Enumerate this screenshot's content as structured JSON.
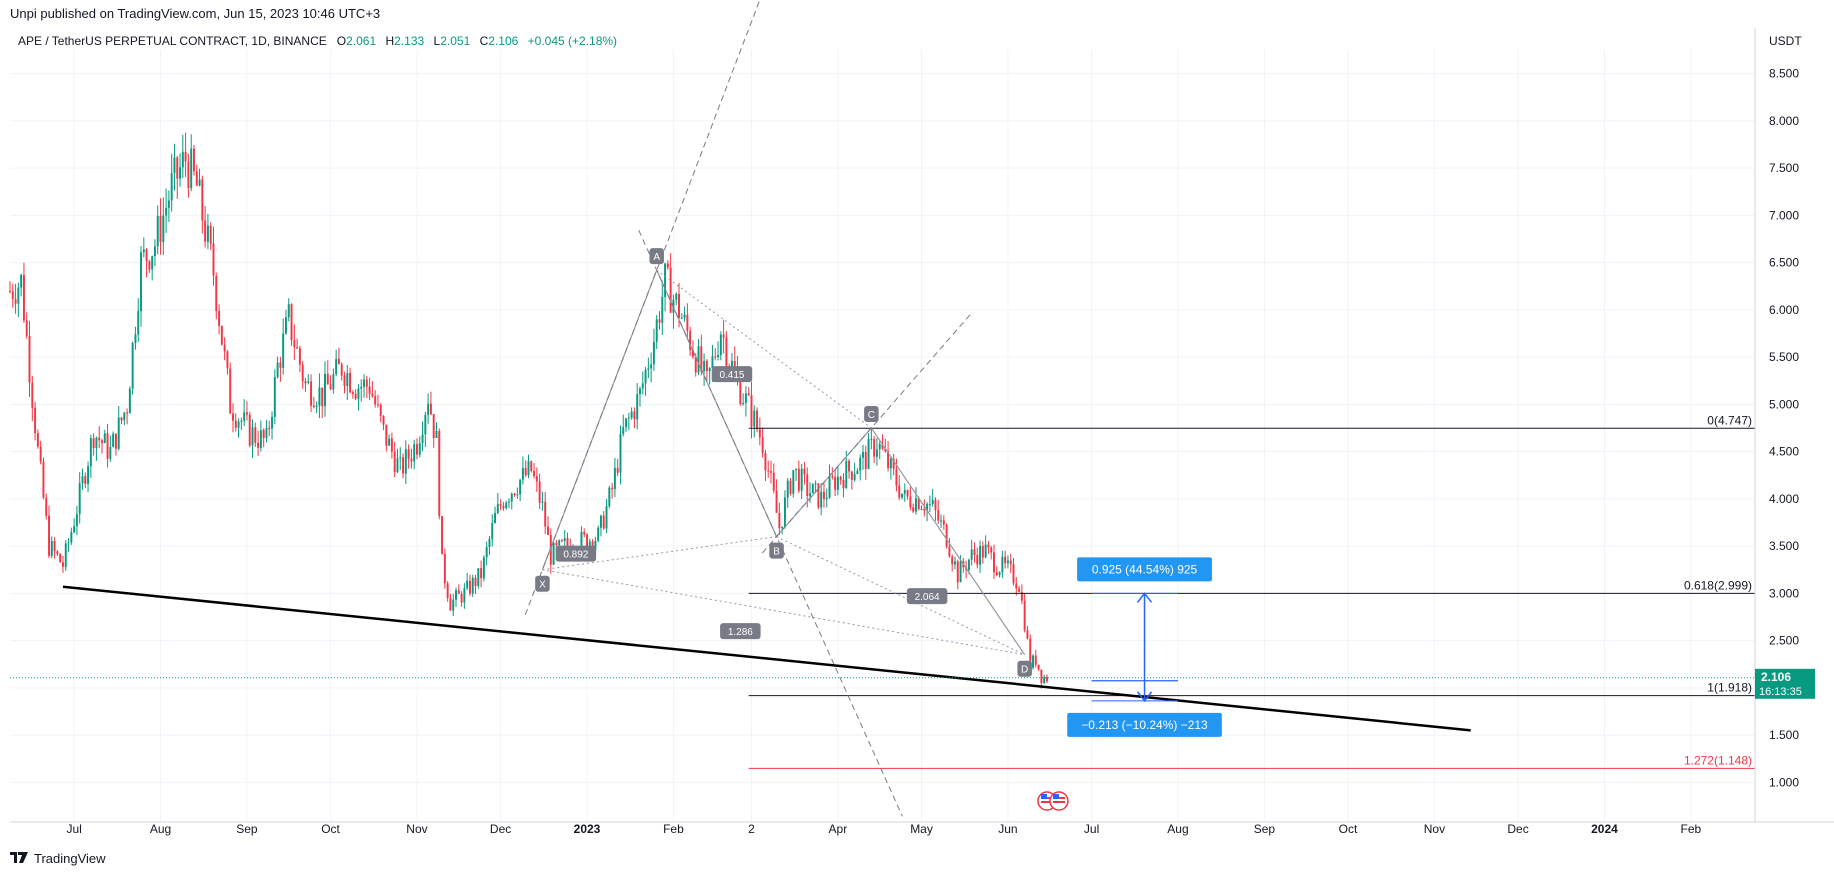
{
  "header": {
    "published": "Unpi published on TradingView.com, Jun 15, 2023 10:46 UTC+3"
  },
  "legend": {
    "symbol": "APE / TetherUS PERPETUAL CONTRACT, 1D, BINANCE",
    "open_label": "O",
    "open": "2.061",
    "high_label": "H",
    "high": "2.133",
    "low_label": "L",
    "low": "2.051",
    "close_label": "C",
    "close": "2.106",
    "change": "+0.045 (+2.18%)"
  },
  "footer": {
    "brand": "TradingView"
  },
  "colors": {
    "up": "#089981",
    "down": "#f23645",
    "grid": "#f0f3fa",
    "axis_text": "#131722",
    "badge_bg": "#787b86",
    "measure_blue": "#2962ff",
    "measure_label_bg": "#2196f3",
    "fib_red": "#f23645"
  },
  "chart_data": {
    "type": "candlestick",
    "currency": "USDT",
    "timeframe": "1D",
    "exchange": "BINANCE",
    "yaxis_ticks": [
      "8.500",
      "8.000",
      "7.500",
      "7.000",
      "6.500",
      "6.000",
      "5.500",
      "5.000",
      "4.500",
      "4.000",
      "3.500",
      "3.000",
      "2.500",
      "2.000",
      "1.500",
      "1.000"
    ],
    "ylim": [
      0.58,
      8.75
    ],
    "xaxis_ticks": [
      {
        "label": "Jul",
        "date": "2022-07-01"
      },
      {
        "label": "Aug",
        "date": "2022-08-01"
      },
      {
        "label": "Sep",
        "date": "2022-09-01"
      },
      {
        "label": "Oct",
        "date": "2022-10-01"
      },
      {
        "label": "Nov",
        "date": "2022-11-01"
      },
      {
        "label": "Dec",
        "date": "2022-12-01"
      },
      {
        "label": "2023",
        "date": "2023-01-01"
      },
      {
        "label": "Feb",
        "date": "2023-02-01"
      },
      {
        "label": "2",
        "date": "2023-03-01"
      },
      {
        "label": "Apr",
        "date": "2023-04-01"
      },
      {
        "label": "May",
        "date": "2023-05-01"
      },
      {
        "label": "Jun",
        "date": "2023-06-01"
      },
      {
        "label": "Jul",
        "date": "2023-07-01"
      },
      {
        "label": "Aug",
        "date": "2023-08-01"
      },
      {
        "label": "Sep",
        "date": "2023-09-01"
      },
      {
        "label": "Oct",
        "date": "2023-10-01"
      },
      {
        "label": "Nov",
        "date": "2023-11-01"
      },
      {
        "label": "Dec",
        "date": "2023-12-01"
      },
      {
        "label": "2024",
        "date": "2024-01-01"
      },
      {
        "label": "Feb",
        "date": "2024-02-01"
      }
    ],
    "xlim": [
      "2022-06-08",
      "2024-02-24"
    ],
    "price_path": [
      [
        "2022-06-08",
        6.2
      ],
      [
        "2022-06-12",
        6.3
      ],
      [
        "2022-06-18",
        4.5
      ],
      [
        "2022-06-22",
        3.5
      ],
      [
        "2022-06-27",
        3.3
      ],
      [
        "2022-07-02",
        3.9
      ],
      [
        "2022-07-08",
        4.7
      ],
      [
        "2022-07-14",
        4.5
      ],
      [
        "2022-07-20",
        5.0
      ],
      [
        "2022-07-25",
        6.5
      ],
      [
        "2022-07-30",
        6.7
      ],
      [
        "2022-08-05",
        7.3
      ],
      [
        "2022-08-10",
        7.6
      ],
      [
        "2022-08-14",
        7.3
      ],
      [
        "2022-08-20",
        6.4
      ],
      [
        "2022-08-26",
        5.0
      ],
      [
        "2022-09-02",
        4.7
      ],
      [
        "2022-09-08",
        4.6
      ],
      [
        "2022-09-12",
        5.4
      ],
      [
        "2022-09-16",
        5.9
      ],
      [
        "2022-09-22",
        5.2
      ],
      [
        "2022-09-28",
        5.1
      ],
      [
        "2022-10-05",
        5.4
      ],
      [
        "2022-10-10",
        5.2
      ],
      [
        "2022-10-15",
        5.2
      ],
      [
        "2022-10-20",
        4.7
      ],
      [
        "2022-10-26",
        4.3
      ],
      [
        "2022-11-01",
        4.6
      ],
      [
        "2022-11-05",
        5.1
      ],
      [
        "2022-11-08",
        4.6
      ],
      [
        "2022-11-10",
        3.3
      ],
      [
        "2022-11-13",
        2.9
      ],
      [
        "2022-11-18",
        3.0
      ],
      [
        "2022-11-24",
        3.2
      ],
      [
        "2022-11-29",
        3.8
      ],
      [
        "2022-12-02",
        4.0
      ],
      [
        "2022-12-08",
        4.2
      ],
      [
        "2022-12-12",
        4.3
      ],
      [
        "2022-12-16",
        3.9
      ],
      [
        "2022-12-19",
        3.4
      ],
      [
        "2022-12-24",
        3.5
      ],
      [
        "2022-12-30",
        3.55
      ],
      [
        "2023-01-05",
        3.6
      ],
      [
        "2023-01-10",
        4.1
      ],
      [
        "2023-01-14",
        4.7
      ],
      [
        "2023-01-20",
        5.1
      ],
      [
        "2023-01-25",
        5.7
      ],
      [
        "2023-01-29",
        6.3
      ],
      [
        "2023-02-03",
        6.0
      ],
      [
        "2023-02-08",
        5.6
      ],
      [
        "2023-02-13",
        5.2
      ],
      [
        "2023-02-18",
        5.8
      ],
      [
        "2023-02-22",
        5.4
      ],
      [
        "2023-02-26",
        5.1
      ],
      [
        "2023-03-01",
        4.9
      ],
      [
        "2023-03-05",
        4.6
      ],
      [
        "2023-03-09",
        4.0
      ],
      [
        "2023-03-11",
        3.7
      ],
      [
        "2023-03-16",
        4.3
      ],
      [
        "2023-03-21",
        4.1
      ],
      [
        "2023-03-26",
        4.0
      ],
      [
        "2023-03-31",
        4.2
      ],
      [
        "2023-04-05",
        4.3
      ],
      [
        "2023-04-10",
        4.4
      ],
      [
        "2023-04-15",
        4.6
      ],
      [
        "2023-04-20",
        4.3
      ],
      [
        "2023-04-25",
        4.0
      ],
      [
        "2023-04-30",
        4.0
      ],
      [
        "2023-05-05",
        3.9
      ],
      [
        "2023-05-10",
        3.6
      ],
      [
        "2023-05-14",
        3.2
      ],
      [
        "2023-05-19",
        3.4
      ],
      [
        "2023-05-24",
        3.45
      ],
      [
        "2023-05-28",
        3.3
      ],
      [
        "2023-06-01",
        3.25
      ],
      [
        "2023-06-05",
        3.1
      ],
      [
        "2023-06-07",
        2.7
      ],
      [
        "2023-06-09",
        2.25
      ],
      [
        "2023-06-11",
        2.3
      ],
      [
        "2023-06-13",
        2.12
      ],
      [
        "2023-06-15",
        2.106
      ]
    ],
    "last_price": {
      "value": "2.106",
      "countdown": "16:13:35"
    },
    "harmonic_pattern": {
      "points": [
        {
          "label": "X",
          "date": "2022-12-16",
          "price": 3.25
        },
        {
          "label": "A",
          "date": "2023-01-26",
          "price": 6.42
        },
        {
          "label": "B",
          "date": "2023-03-10",
          "price": 3.6
        },
        {
          "label": "C",
          "date": "2023-04-13",
          "price": 4.75
        },
        {
          "label": "D",
          "date": "2023-06-07",
          "price": 2.35
        }
      ],
      "ratios": [
        {
          "label": "0.415",
          "date": "2023-02-22",
          "price": 5.32
        },
        {
          "label": "0.892",
          "date": "2022-12-28",
          "price": 3.42
        },
        {
          "label": "2.064",
          "date": "2023-05-03",
          "price": 2.97
        },
        {
          "label": "1.286",
          "date": "2023-02-25",
          "price": 2.6
        }
      ]
    },
    "fibonacci_levels": [
      {
        "label": "0(4.747)",
        "price": 4.747,
        "color": "#131722"
      },
      {
        "label": "0.618(2.999)",
        "price": 2.999,
        "color": "#131722"
      },
      {
        "label": "1(1.918)",
        "price": 1.918,
        "color": "#131722"
      },
      {
        "label": "1.272(1.148)",
        "price": 1.148,
        "color": "#f23645"
      }
    ],
    "fib_start_date": "2023-02-28",
    "trendline": {
      "from": [
        "2022-06-27",
        3.07
      ],
      "to": [
        "2023-11-14",
        1.55
      ]
    },
    "measurements": [
      {
        "label": "0.925 (44.54%) 925",
        "from_price": 2.075,
        "to_price": 3.0,
        "date": "2023-07-20",
        "box_from": "2023-07-01",
        "box_to": "2023-08-01"
      },
      {
        "label": "−0.213 (−10.24%) −213",
        "from_price": 2.075,
        "to_price": 1.862,
        "date": "2023-07-20",
        "box_from": "2023-07-01",
        "box_to": "2023-08-01"
      }
    ]
  }
}
